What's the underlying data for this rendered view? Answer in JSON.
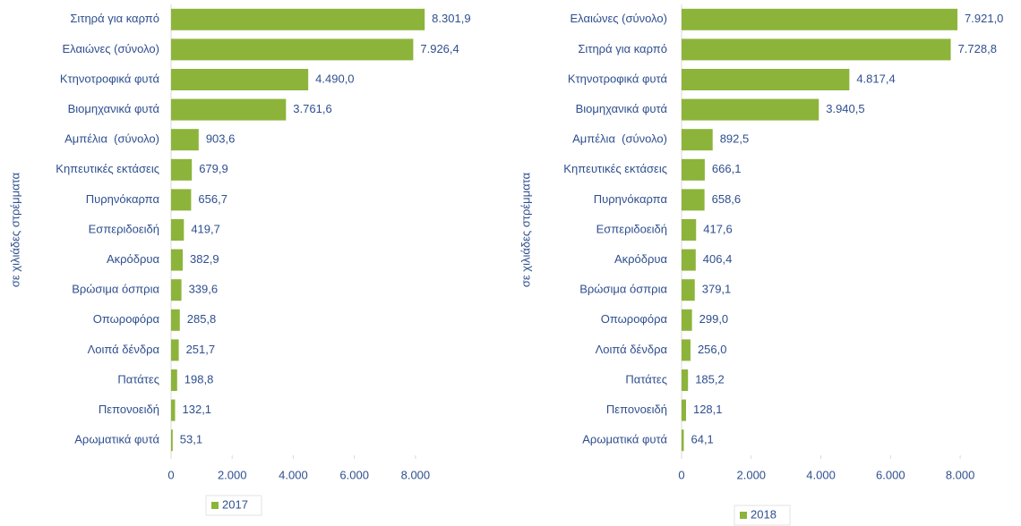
{
  "chart_data": [
    {
      "type": "bar",
      "orientation": "horizontal",
      "ylabel": "σε χιλιάδες στρέμματα",
      "categories": [
        "Σιτηρά για καρπό",
        "Ελαιώνες (σύνολο)",
        "Κτηνοτροφικά φυτά",
        "Βιομηχανικά φυτά",
        "Αμπέλια  (σύνολο)",
        "Κηπευτικές εκτάσεις",
        "Πυρηνόκαρπα",
        "Εσπεριδοειδή",
        "Ακρόδρυα",
        "Βρώσιμα όσπρια",
        "Οπωροφόρα",
        "Λοιπά δένδρα",
        "Πατάτες",
        "Πεπονοειδή",
        "Αρωματικά φυτά"
      ],
      "series": [
        {
          "name": "2017",
          "color": "#8cb43a",
          "values": [
            8301.9,
            7926.4,
            4490.0,
            3761.6,
            903.6,
            679.9,
            656.7,
            419.7,
            382.9,
            339.6,
            285.8,
            251.7,
            198.8,
            132.1,
            53.1
          ],
          "value_labels": [
            "8.301,9",
            "7.926,4",
            "4.490,0",
            "3.761,6",
            "903,6",
            "679,9",
            "656,7",
            "419,7",
            "382,9",
            "339,6",
            "285,8",
            "251,7",
            "198,8",
            "132,1",
            "53,1"
          ]
        }
      ],
      "xlim": [
        0,
        9000
      ],
      "xticks": [
        0,
        {
          "value": 2000,
          "label": "2.000"
        },
        {
          "value": 4000,
          "label": "4.000"
        },
        {
          "value": 6000,
          "label": "6.000"
        },
        {
          "value": 8000,
          "label": "8.000"
        }
      ]
    },
    {
      "type": "bar",
      "orientation": "horizontal",
      "ylabel": "σε χιλιάδες στρέμματα",
      "categories": [
        "Ελαιώνες (σύνολο)",
        "Σιτηρά για καρπό",
        "Κτηνοτροφικά φυτά",
        "Βιομηχανικά φυτά",
        "Αμπέλια  (σύνολο)",
        "Κηπευτικές εκτάσεις",
        "Πυρηνόκαρπα",
        "Εσπεριδοειδή",
        "Ακρόδρυα",
        "Βρώσιμα όσπρια",
        "Οπωροφόρα",
        "Λοιπά δένδρα",
        "Πατάτες",
        "Πεπονοειδή",
        "Αρωματικά φυτά"
      ],
      "series": [
        {
          "name": "2018",
          "color": "#8cb43a",
          "values": [
            7921.0,
            7728.8,
            4817.4,
            3940.5,
            892.5,
            666.1,
            658.6,
            417.6,
            406.4,
            379.1,
            299.0,
            256.0,
            185.2,
            128.1,
            64.1
          ],
          "value_labels": [
            "7.921,0",
            "7.728,8",
            "4.817,4",
            "3.940,5",
            "892,5",
            "666,1",
            "658,6",
            "417,6",
            "406,4",
            "379,1",
            "299,0",
            "256,0",
            "185,2",
            "128,1",
            "64,1"
          ]
        }
      ],
      "xlim": [
        0,
        9000
      ],
      "xticks": [
        0,
        {
          "value": 2000,
          "label": "2.000"
        },
        {
          "value": 4000,
          "label": "4.000"
        },
        {
          "value": 6000,
          "label": "6.000"
        },
        {
          "value": 8000,
          "label": "8.000"
        }
      ]
    }
  ]
}
